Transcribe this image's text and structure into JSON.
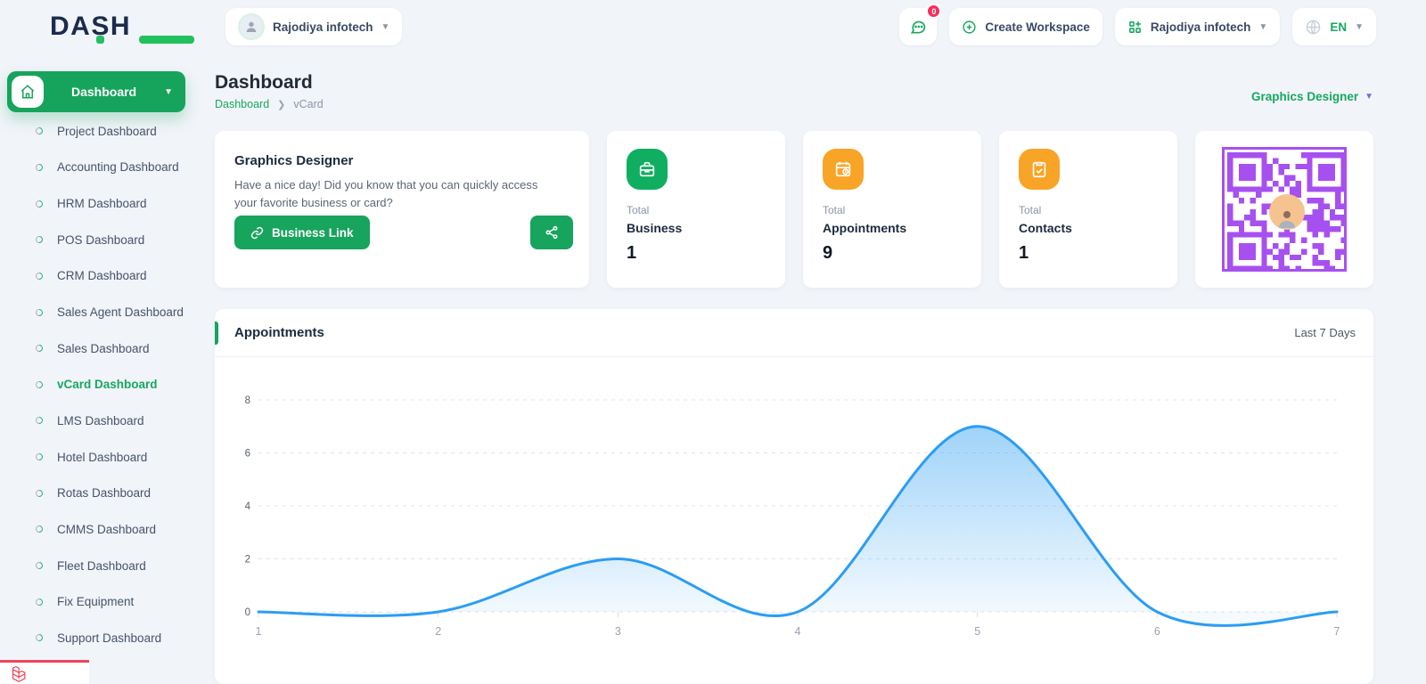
{
  "brand": {
    "name": "DASH"
  },
  "header": {
    "workspace_user": "Rajodiya infotech",
    "chat_badge": "0",
    "create_workspace_label": "Create Workspace",
    "company_name": "Rajodiya infotech",
    "language": "EN"
  },
  "sidebar": {
    "group_label": "Dashboard",
    "items": [
      {
        "label": "Project Dashboard",
        "active": false
      },
      {
        "label": "Accounting Dashboard",
        "active": false
      },
      {
        "label": "HRM Dashboard",
        "active": false
      },
      {
        "label": "POS Dashboard",
        "active": false
      },
      {
        "label": "CRM Dashboard",
        "active": false
      },
      {
        "label": "Sales Agent Dashboard",
        "active": false
      },
      {
        "label": "Sales Dashboard",
        "active": false
      },
      {
        "label": "vCard Dashboard",
        "active": true
      },
      {
        "label": "LMS Dashboard",
        "active": false
      },
      {
        "label": "Hotel Dashboard",
        "active": false
      },
      {
        "label": "Rotas Dashboard",
        "active": false
      },
      {
        "label": "CMMS Dashboard",
        "active": false
      },
      {
        "label": "Fleet Dashboard",
        "active": false
      },
      {
        "label": "Fix Equipment",
        "active": false
      },
      {
        "label": "Support Dashboard",
        "active": false
      }
    ]
  },
  "page": {
    "title": "Dashboard",
    "breadcrumb_root": "Dashboard",
    "breadcrumb_current": "vCard",
    "role_filter": "Graphics Designer"
  },
  "welcome_card": {
    "title": "Graphics Designer",
    "message": "Have a nice day! Did you know that you can quickly access your favorite business or card?",
    "business_link_label": "Business Link",
    "share_icon": "share-nodes-icon"
  },
  "stats": [
    {
      "label_top": "Total",
      "label": "Business",
      "value": "1",
      "icon": "briefcase-icon",
      "color": "#0fae60"
    },
    {
      "label_top": "Total",
      "label": "Appointments",
      "value": "9",
      "icon": "calendar-clock-icon",
      "color": "#f8a426"
    },
    {
      "label_top": "Total",
      "label": "Contacts",
      "value": "1",
      "icon": "clipboard-check-icon",
      "color": "#f8a426"
    }
  ],
  "qr_card": {
    "color": "#a750f0",
    "icon": "qr-code"
  },
  "chart_card": {
    "title": "Appointments",
    "range_label": "Last 7 Days"
  },
  "chart_data": {
    "type": "area",
    "title": "Appointments",
    "x": [
      1,
      2,
      3,
      4,
      5,
      6,
      7
    ],
    "series": [
      {
        "name": "Appointments",
        "values": [
          0,
          0,
          2,
          0,
          7,
          0,
          0
        ]
      }
    ],
    "xlabel": "",
    "ylabel": "",
    "ylim": [
      0,
      8
    ],
    "yticks": [
      0,
      2,
      4,
      6,
      8
    ],
    "line_color": "#2b9df3",
    "grid": "horizontal-dashed",
    "legend": "none"
  },
  "colors": {
    "accent_green": "#17a45c",
    "badge_red": "#fb2d5d",
    "laravel_red": "#f0435c"
  }
}
